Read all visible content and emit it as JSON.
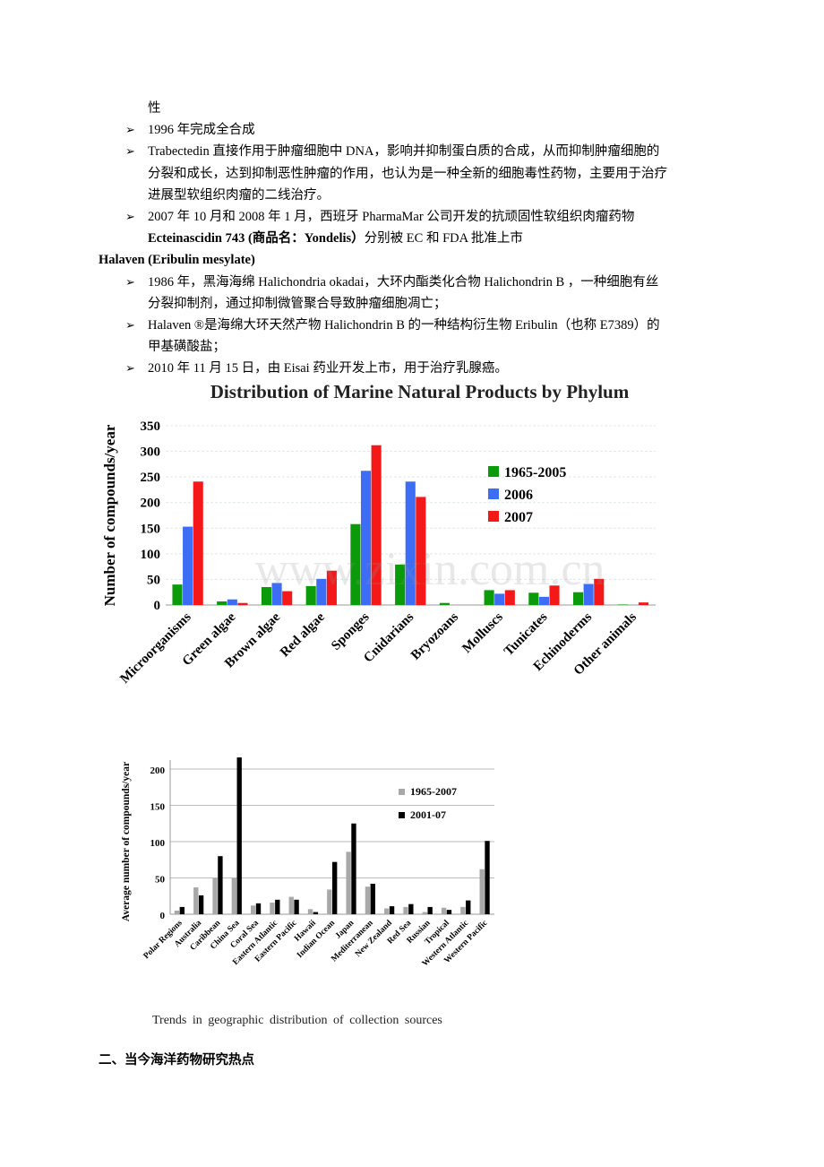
{
  "lines": [
    {
      "text": "性",
      "bullet": false,
      "bold": false
    },
    {
      "text": "1996 年完成全合成",
      "bullet": true
    },
    {
      "text": "Trabectedin 直接作用于肿瘤细胞中 DNA，影响并抑制蛋白质的合成，从而抑制肿瘤细胞的",
      "bullet": true
    },
    {
      "text": "分裂和成长，达到抑制恶性肿瘤的作用，也认为是一种全新的细胞毒性药物，主要用于治疗",
      "bullet": false
    },
    {
      "text": "进展型软组织肉瘤的二线治疗。",
      "bullet": false
    },
    {
      "text": "2007 年 10 月和 2008 年 1 月，西班牙 PharmaMar 公司开发的抗顽固性软组织肉瘤药物",
      "bullet": true
    },
    {
      "text": "Ecteinascidin 743 (商品名：Yondelis）",
      "bold_part": true,
      "rest": "分别被 EC 和 FDA 批准上市",
      "bullet": false
    },
    {
      "text": "Halaven (Eribulin mesylate)",
      "heading": true
    },
    {
      "text": "1986 年，黑海海绵 Halichondria okadai，大环内酯类化合物 Halichondrin B ，一种细胞有丝",
      "bullet": true
    },
    {
      "text": "分裂抑制剂，通过抑制微管聚合导致肿瘤细胞凋亡；",
      "bullet": false
    },
    {
      "text": "Halaven ®是海绵大环天然产物 Halichondrin B 的一种结构衍生物 Eribulin（也称 E7389）的",
      "bullet": true
    },
    {
      "text": "甲基磺酸盐；",
      "bullet": false
    },
    {
      "text": "2010 年 11 月 15 日，由 Eisai 药业开发上市，用于治疗乳腺癌。",
      "bullet": true
    }
  ],
  "bullet_glyph": "➢",
  "watermark": "www.zixin.com.cn",
  "caption": "Trends in geographic distribution of collection sources",
  "section_heading": "二、当今海洋药物研究热点",
  "chart_data": [
    {
      "type": "bar",
      "title": "Distribution of Marine Natural Products by Phylum",
      "ylabel": "Number of compounds/year",
      "xlabel": "",
      "ylim": [
        0,
        350
      ],
      "yticks": [
        0,
        50,
        100,
        150,
        200,
        250,
        300,
        350
      ],
      "grid": true,
      "legend": "right",
      "categories": [
        "Microorganisms",
        "Green algae",
        "Brown algae",
        "Red algae",
        "Sponges",
        "Cnidarians",
        "Bryozoans",
        "Molluscs",
        "Tunicates",
        "Echinoderms",
        "Other animals"
      ],
      "series": [
        {
          "name": "1965-2005",
          "color": "#0a9a0a",
          "values": [
            40,
            7,
            35,
            37,
            158,
            79,
            4,
            29,
            24,
            25,
            1
          ]
        },
        {
          "name": "2006",
          "color": "#3d6cf5",
          "values": [
            153,
            11,
            43,
            51,
            262,
            241,
            0,
            22,
            16,
            41,
            0
          ]
        },
        {
          "name": "2007",
          "color": "#f41818",
          "values": [
            241,
            4,
            27,
            67,
            312,
            211,
            0,
            29,
            38,
            51,
            5
          ]
        }
      ]
    },
    {
      "type": "bar",
      "title": "",
      "ylabel": "Average number of compounds/year",
      "xlabel": "",
      "ylim": [
        0,
        220
      ],
      "yticks": [
        0,
        50,
        100,
        150,
        200
      ],
      "grid": true,
      "legend": "right",
      "categories": [
        "Polar Regions",
        "Australia",
        "Caribbean",
        "China Sea",
        "Coral Sea",
        "Eastern Atlantic",
        "Eastern Pacific",
        "Hawaii",
        "Indian Ocean",
        "Japan",
        "Mediterranean",
        "New Zealand",
        "Red Sea",
        "Russian",
        "Tropical",
        "Western Atlantic",
        "Western Pacific"
      ],
      "series": [
        {
          "name": "1965-2007",
          "color": "#a8a8a8",
          "values": [
            5,
            37,
            50,
            50,
            12,
            16,
            24,
            7,
            34,
            86,
            38,
            8,
            10,
            3,
            9,
            10,
            62
          ]
        },
        {
          "name": "2001-07",
          "color": "#000000",
          "values": [
            10,
            26,
            80,
            216,
            15,
            20,
            20,
            3,
            72,
            125,
            42,
            11,
            14,
            10,
            6,
            19,
            101
          ]
        }
      ]
    }
  ]
}
